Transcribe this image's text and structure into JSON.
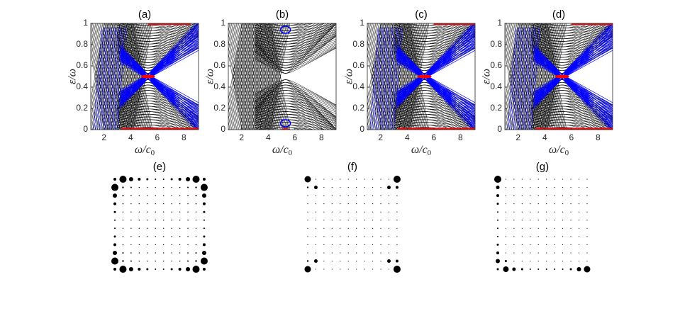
{
  "chart_data": [
    {
      "type": "spectrum",
      "title": "(a)",
      "x_label": {
        "base": "ω/c",
        "sub": "0"
      },
      "y_label": "ε/ω",
      "xlim": [
        1,
        9.1
      ],
      "ylim": [
        0,
        1
      ],
      "xticks": [
        2,
        4,
        6,
        8
      ],
      "yticks": [
        0,
        0.2,
        0.4,
        0.6,
        0.8,
        1
      ]
    },
    {
      "type": "spectrum",
      "title": "(b)",
      "x_label": {
        "base": "ω/c",
        "sub": "0"
      },
      "y_label": "ε/ω",
      "xlim": [
        1,
        9.1
      ],
      "ylim": [
        0,
        1
      ],
      "xticks": [
        2,
        4,
        6,
        8
      ],
      "yticks": [
        0,
        0.2,
        0.4,
        0.6,
        0.8,
        1
      ]
    },
    {
      "type": "spectrum",
      "title": "(c)",
      "x_label": {
        "base": "ω/c",
        "sub": "0"
      },
      "y_label": "ε/ω",
      "xlim": [
        1,
        9.1
      ],
      "ylim": [
        0,
        1
      ],
      "xticks": [
        2,
        4,
        6,
        8
      ],
      "yticks": [
        0,
        0.2,
        0.4,
        0.6,
        0.8,
        1
      ]
    },
    {
      "type": "spectrum",
      "title": "(d)",
      "x_label": {
        "base": "ω/c",
        "sub": "0"
      },
      "y_label": "ε/ω",
      "xlim": [
        1,
        9.1
      ],
      "ylim": [
        0,
        1
      ],
      "xticks": [
        2,
        4,
        6,
        8
      ],
      "yticks": [
        0,
        0.2,
        0.4,
        0.6,
        0.8,
        1
      ]
    },
    {
      "type": "dot_grid",
      "title": "(e)",
      "sizes": [
        [
          2,
          5,
          3,
          2,
          1.5,
          1,
          1,
          1.5,
          2,
          3,
          5,
          2
        ],
        [
          5,
          1.2,
          1,
          0.8,
          0.7,
          0.7,
          0.7,
          0.7,
          0.8,
          1,
          1.2,
          5
        ],
        [
          3,
          1,
          0.8,
          0.7,
          0.7,
          0.7,
          0.7,
          0.7,
          0.7,
          0.8,
          1,
          3
        ],
        [
          2,
          0.8,
          0.7,
          0.7,
          0.7,
          0.7,
          0.7,
          0.7,
          0.7,
          0.7,
          0.8,
          2
        ],
        [
          1.5,
          0.7,
          0.7,
          0.7,
          0.7,
          0.7,
          0.7,
          0.7,
          0.7,
          0.7,
          0.7,
          1.5
        ],
        [
          1,
          0.7,
          0.7,
          0.7,
          0.7,
          0.7,
          0.7,
          0.7,
          0.7,
          0.7,
          0.7,
          1
        ],
        [
          1,
          0.7,
          0.7,
          0.7,
          0.7,
          0.7,
          0.7,
          0.7,
          0.7,
          0.7,
          0.7,
          1
        ],
        [
          1.5,
          0.7,
          0.7,
          0.7,
          0.7,
          0.7,
          0.7,
          0.7,
          0.7,
          0.7,
          0.7,
          1.5
        ],
        [
          2,
          0.8,
          0.7,
          0.7,
          0.7,
          0.7,
          0.7,
          0.7,
          0.7,
          0.7,
          0.8,
          2
        ],
        [
          3,
          1,
          0.8,
          0.7,
          0.7,
          0.7,
          0.7,
          0.7,
          0.7,
          0.8,
          1,
          3
        ],
        [
          5,
          1.2,
          1,
          0.8,
          0.7,
          0.7,
          0.7,
          0.7,
          0.8,
          1,
          1.2,
          5
        ],
        [
          2,
          5,
          3,
          2,
          1.5,
          1,
          1,
          1.5,
          2,
          3,
          5,
          2
        ]
      ]
    },
    {
      "type": "dot_grid",
      "title": "(f)",
      "sizes": [
        [
          4.5,
          0.6,
          0.6,
          0.6,
          0.6,
          0.6,
          0.6,
          0.6,
          0.6,
          0.6,
          0.6,
          5
        ],
        [
          1.2,
          2.5,
          0.6,
          0.6,
          0.6,
          0.6,
          0.6,
          0.6,
          0.6,
          0.6,
          2.5,
          2
        ],
        [
          0.6,
          0.6,
          0.6,
          0.6,
          0.6,
          0.6,
          0.6,
          0.6,
          0.6,
          0.6,
          0.6,
          0.6
        ],
        [
          0.6,
          0.6,
          0.6,
          0.6,
          0.6,
          0.6,
          0.6,
          0.6,
          0.6,
          0.6,
          0.6,
          0.6
        ],
        [
          0.6,
          0.6,
          0.6,
          0.6,
          0.6,
          0.6,
          0.6,
          0.6,
          0.6,
          0.6,
          0.6,
          0.6
        ],
        [
          0.6,
          0.6,
          0.6,
          0.6,
          0.6,
          0.6,
          0.6,
          0.6,
          0.6,
          0.6,
          0.6,
          0.6
        ],
        [
          0.6,
          0.6,
          0.6,
          0.6,
          0.6,
          0.6,
          0.6,
          0.6,
          0.6,
          0.6,
          0.6,
          0.6
        ],
        [
          0.6,
          0.6,
          0.6,
          0.6,
          0.6,
          0.6,
          0.6,
          0.6,
          0.6,
          0.6,
          0.6,
          0.6
        ],
        [
          0.6,
          0.6,
          0.6,
          0.6,
          0.6,
          0.6,
          0.6,
          0.6,
          0.6,
          0.6,
          0.6,
          0.6
        ],
        [
          0.6,
          0.6,
          0.6,
          0.6,
          0.6,
          0.6,
          0.6,
          0.6,
          0.6,
          0.6,
          0.6,
          0.6
        ],
        [
          1.2,
          2.5,
          0.6,
          0.6,
          0.6,
          0.6,
          0.6,
          0.6,
          0.6,
          0.6,
          2.5,
          2
        ],
        [
          4.5,
          0.6,
          0.6,
          0.6,
          0.6,
          0.6,
          0.6,
          0.6,
          0.6,
          0.6,
          0.6,
          5
        ]
      ]
    },
    {
      "type": "dot_grid",
      "title": "(g)",
      "sizes": [
        [
          5,
          0.6,
          0.6,
          0.6,
          0.6,
          0.6,
          0.6,
          0.6,
          0.6,
          0.6,
          0.6,
          0.6
        ],
        [
          2.5,
          0.6,
          0.6,
          0.6,
          0.6,
          0.6,
          0.6,
          0.6,
          0.6,
          0.6,
          0.6,
          0.6
        ],
        [
          2,
          0.6,
          0.6,
          0.6,
          0.6,
          0.6,
          0.6,
          0.6,
          0.6,
          0.6,
          0.6,
          0.6
        ],
        [
          1.5,
          0.6,
          0.6,
          0.6,
          0.6,
          0.6,
          0.6,
          0.6,
          0.6,
          0.6,
          0.6,
          0.6
        ],
        [
          1,
          0.6,
          0.6,
          0.6,
          0.6,
          0.6,
          0.6,
          0.6,
          0.6,
          0.6,
          0.6,
          0.6
        ],
        [
          1,
          0.6,
          0.6,
          0.6,
          0.6,
          0.6,
          0.6,
          0.6,
          0.6,
          0.6,
          0.6,
          0.6
        ],
        [
          1,
          0.6,
          0.6,
          0.6,
          0.6,
          0.6,
          0.6,
          0.6,
          0.6,
          0.6,
          0.6,
          0.6
        ],
        [
          1,
          0.6,
          0.6,
          0.6,
          0.6,
          0.6,
          0.6,
          0.6,
          0.6,
          0.6,
          0.6,
          0.6
        ],
        [
          1.5,
          0.6,
          0.6,
          0.6,
          0.6,
          0.6,
          0.6,
          0.6,
          0.6,
          0.6,
          0.6,
          0.6
        ],
        [
          2,
          0.6,
          0.6,
          0.6,
          0.6,
          0.6,
          0.6,
          0.6,
          0.6,
          0.6,
          0.6,
          0.6
        ],
        [
          3,
          1.5,
          0.6,
          0.6,
          0.6,
          0.6,
          0.6,
          0.6,
          0.6,
          0.6,
          0.6,
          0.6
        ],
        [
          1.5,
          4,
          2.5,
          1.5,
          1,
          1,
          1,
          1,
          1,
          1.5,
          3,
          4.5
        ]
      ]
    }
  ]
}
